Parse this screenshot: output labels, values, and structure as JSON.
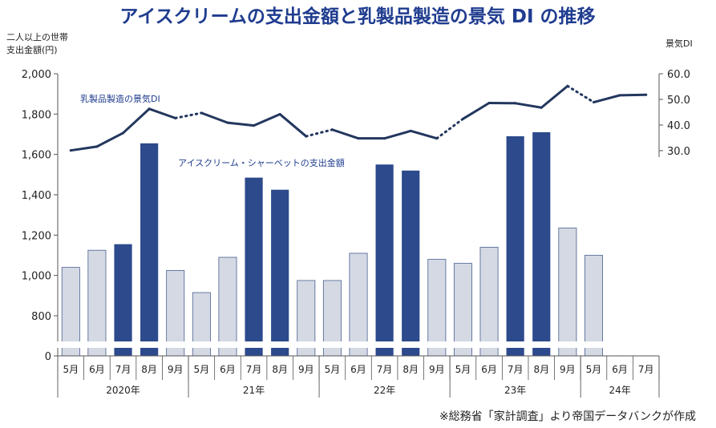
{
  "chart_data": {
    "type": "bar+line",
    "title": "アイスクリームの支出金額と乳製品製造の景気 DI の推移",
    "left_axis_title": [
      "二人以上の世帯",
      "支出金額(円)"
    ],
    "right_axis_title": "景気DI",
    "left_ticks": [
      "2,000",
      "1,800",
      "1,600",
      "1,400",
      "1,200",
      "1,000",
      "800",
      "0"
    ],
    "right_ticks": [
      "60.0",
      "50.0",
      "40.0",
      "30.0"
    ],
    "ylim_left": [
      0,
      2000
    ],
    "ylim_right": [
      30,
      60
    ],
    "axis_break": "between 0 and 800 (left axis)",
    "categories": [
      "5月",
      "6月",
      "7月",
      "8月",
      "9月",
      "5月",
      "6月",
      "7月",
      "8月",
      "9月",
      "5月",
      "6月",
      "7月",
      "8月",
      "9月",
      "5月",
      "6月",
      "7月",
      "8月",
      "9月",
      "5月",
      "6月",
      "7月"
    ],
    "years": [
      "2020年",
      "21年",
      "22年",
      "23年",
      "24年"
    ],
    "series": [
      {
        "name": "アイスクリーム・シャーベットの支出金額",
        "type": "bar",
        "values": [
          1040,
          1125,
          1155,
          1655,
          1025,
          915,
          1090,
          1485,
          1425,
          975,
          975,
          1110,
          1550,
          1520,
          1080,
          1060,
          1140,
          1690,
          1710,
          1235,
          1100,
          null,
          null
        ],
        "highlight": [
          false,
          false,
          true,
          true,
          false,
          false,
          false,
          true,
          true,
          false,
          false,
          false,
          true,
          true,
          false,
          false,
          false,
          true,
          true,
          false,
          false,
          false,
          false
        ]
      },
      {
        "name": "乳製品製造の景気DI",
        "type": "line",
        "values": [
          30.1,
          31.6,
          36.9,
          46.3,
          42.7,
          44.7,
          40.9,
          39.8,
          44.2,
          35.6,
          38.2,
          34.8,
          34.8,
          37.7,
          34.8,
          42.4,
          48.6,
          48.5,
          46.8,
          55.2,
          48.9,
          51.6,
          51.8
        ],
        "dotted_segments_after_index": [
          4,
          9,
          14,
          19
        ]
      }
    ],
    "legend_labels": {
      "line": "乳製品製造の景気DI",
      "bar": "アイスクリーム・シャーベットの支出金額"
    },
    "source": "※総務省「家計調査」より帝国データバンクが作成",
    "colors": {
      "title": "#1f3c8f",
      "bar_highlight": "#2c4a8c",
      "bar_normal": "#d4d9e4",
      "bar_edge": "#4a5f8f",
      "line": "#23375e",
      "axis": "#555555"
    }
  }
}
